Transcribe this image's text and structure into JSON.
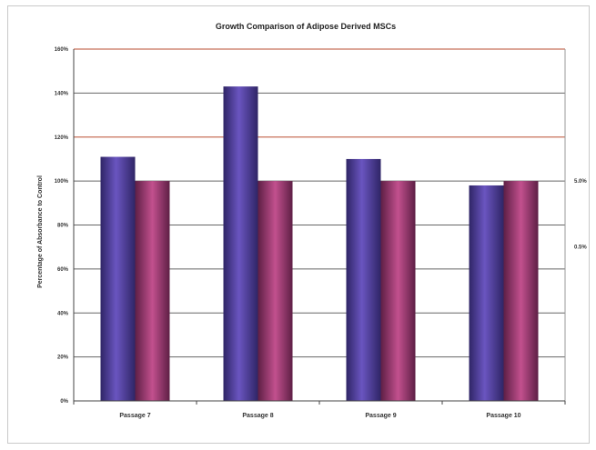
{
  "chart_data": {
    "type": "bar",
    "title": "Growth Comparison of Adipose Derived MSCs",
    "xlabel": "",
    "ylabel": "Percentage of Absorbance to Control",
    "categories": [
      "Passage 7",
      "Passage 8",
      "Passage 9",
      "Passage 10"
    ],
    "ylim": [
      0,
      160
    ],
    "yticks": [
      "0%",
      "20%",
      "40%",
      "60%",
      "80%",
      "100%",
      "120%",
      "140%",
      "160%"
    ],
    "grid": true,
    "legend_position": "right",
    "series": [
      {
        "name": "5.0%",
        "values": [
          111,
          143,
          110,
          98
        ],
        "color": "#4a3a8e"
      },
      {
        "name": "0.5%",
        "values": [
          100,
          100,
          100,
          100
        ],
        "color": "#9a3a72"
      }
    ]
  }
}
